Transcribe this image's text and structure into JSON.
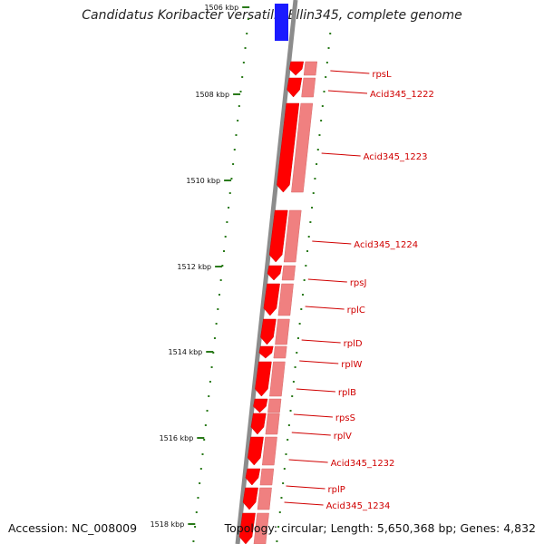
{
  "title": "Candidatus Koribacter versatilis Ellin345, complete genome",
  "footer": {
    "accession": "Accession: NC_008009",
    "summary": "Topology: circular; Length: 5,650,368 bp; Genes: 4,832"
  },
  "colors": {
    "backbone": "#8c8c8c",
    "gene_strand": "#ff0000",
    "gene_band": "#f08080",
    "label": "#d00000",
    "tick": "#2a7a1a",
    "upstream_block": "#1a1aff"
  },
  "ticks": [
    "1506 kbp",
    "1508 kbp",
    "1510 kbp",
    "1512 kbp",
    "1514 kbp",
    "1516 kbp",
    "1518 kbp"
  ],
  "genes": [
    "rpsL",
    "Acid345_1222",
    "Acid345_1223",
    "Acid345_1224",
    "rpsJ",
    "rplC",
    "rplD",
    "rplW",
    "rplB",
    "rpsS",
    "rplV",
    "Acid345_1232",
    "rplP",
    "Acid345_1234"
  ]
}
